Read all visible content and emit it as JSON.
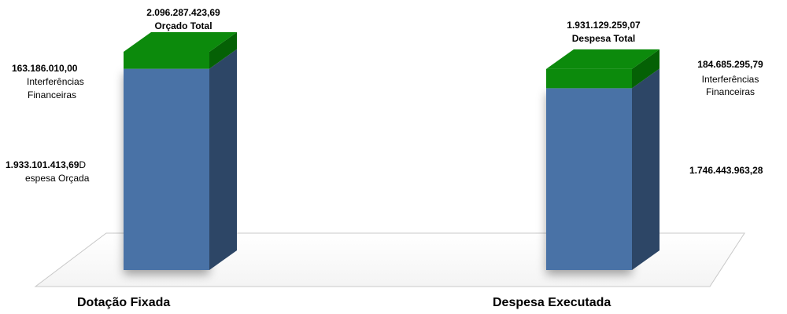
{
  "chart_data": {
    "type": "bar",
    "stacked": true,
    "categories": [
      "Dotação Fixada",
      "Despesa Executada"
    ],
    "series": [
      {
        "name": "",
        "values": [
          1933101413.69,
          1746443963.28
        ]
      },
      {
        "name": "",
        "values": [
          163186010.0,
          184685295.79
        ]
      }
    ],
    "colors": {
      "base": "#4a72a6",
      "base_side": "#2d4666",
      "top": "#0c8a0c",
      "top_side": "#056105",
      "floor": "#ffffff",
      "floor_edge": "#c8c8c8"
    },
    "ylim": [
      0,
      2096287423.69
    ]
  },
  "bar1": {
    "total_value": "2.096.287.423,69",
    "total_label": "Orçado Total",
    "top_value": "163.186.010,00",
    "top_label_1": "Interferências",
    "top_label_2": "Financeiras",
    "base_value": "1.933.101.413,69",
    "base_suffix": "D",
    "base_label_2": "espesa Orçada"
  },
  "bar2": {
    "total_value": "1.931.129.259,07",
    "total_label": "Despesa Total",
    "top_value": "184.685.295,79",
    "top_label_1": "Interferências",
    "top_label_2": "Financeiras",
    "base_value": "1.746.443.963,28"
  }
}
